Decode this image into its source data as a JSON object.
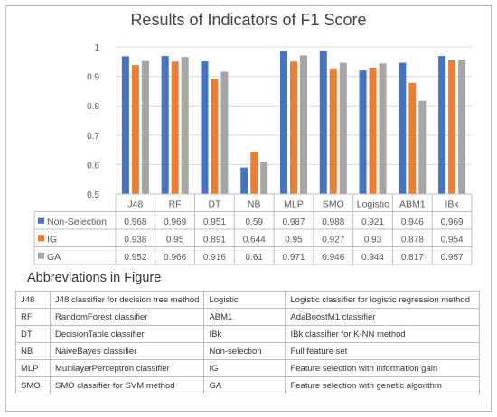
{
  "chart_data": {
    "type": "bar",
    "title": "Results of Indicators of F1 Score",
    "categories": [
      "J48",
      "RF",
      "DT",
      "NB",
      "MLP",
      "SMO",
      "Logistic",
      "ABM1",
      "IBk"
    ],
    "series": [
      {
        "name": "Non-Selection",
        "color": "#4472c4",
        "values": [
          0.968,
          0.969,
          0.951,
          0.59,
          0.987,
          0.988,
          0.921,
          0.946,
          0.969
        ]
      },
      {
        "name": "IG",
        "color": "#ed7d31",
        "values": [
          0.938,
          0.95,
          0.891,
          0.644,
          0.95,
          0.927,
          0.93,
          0.878,
          0.954
        ]
      },
      {
        "name": "GA",
        "color": "#a5a5a5",
        "values": [
          0.952,
          0.966,
          0.916,
          0.61,
          0.971,
          0.946,
          0.944,
          0.817,
          0.957
        ]
      }
    ],
    "ylim": [
      0.5,
      1
    ],
    "yticks": [
      "0.5",
      "0.6",
      "0.7",
      "0.8",
      "0.9",
      "1"
    ],
    "grid": true,
    "data_table": true
  },
  "abbreviations": {
    "title": "Abbreviations in Figure",
    "rows": [
      [
        "J48",
        "J48 classifier for decision tree method",
        "Logistic",
        "Logistic classifier for logistic regression method"
      ],
      [
        "RF",
        "RandomForest classifier",
        "ABM1",
        "AdaBoostM1 classifier"
      ],
      [
        "DT",
        "DecisionTable classifier",
        "IBk",
        "IBk classifier for K-NN method"
      ],
      [
        "NB",
        "NaiveBayes classifier",
        "Non-selection",
        "Full feature set"
      ],
      [
        "MLP",
        "MultilayerPerceptron classifier",
        "IG",
        "Feature selection with information gain"
      ],
      [
        "SMO",
        "SMO classifier for SVM method",
        "GA",
        "Feature selection with genetic algorithm"
      ]
    ]
  }
}
